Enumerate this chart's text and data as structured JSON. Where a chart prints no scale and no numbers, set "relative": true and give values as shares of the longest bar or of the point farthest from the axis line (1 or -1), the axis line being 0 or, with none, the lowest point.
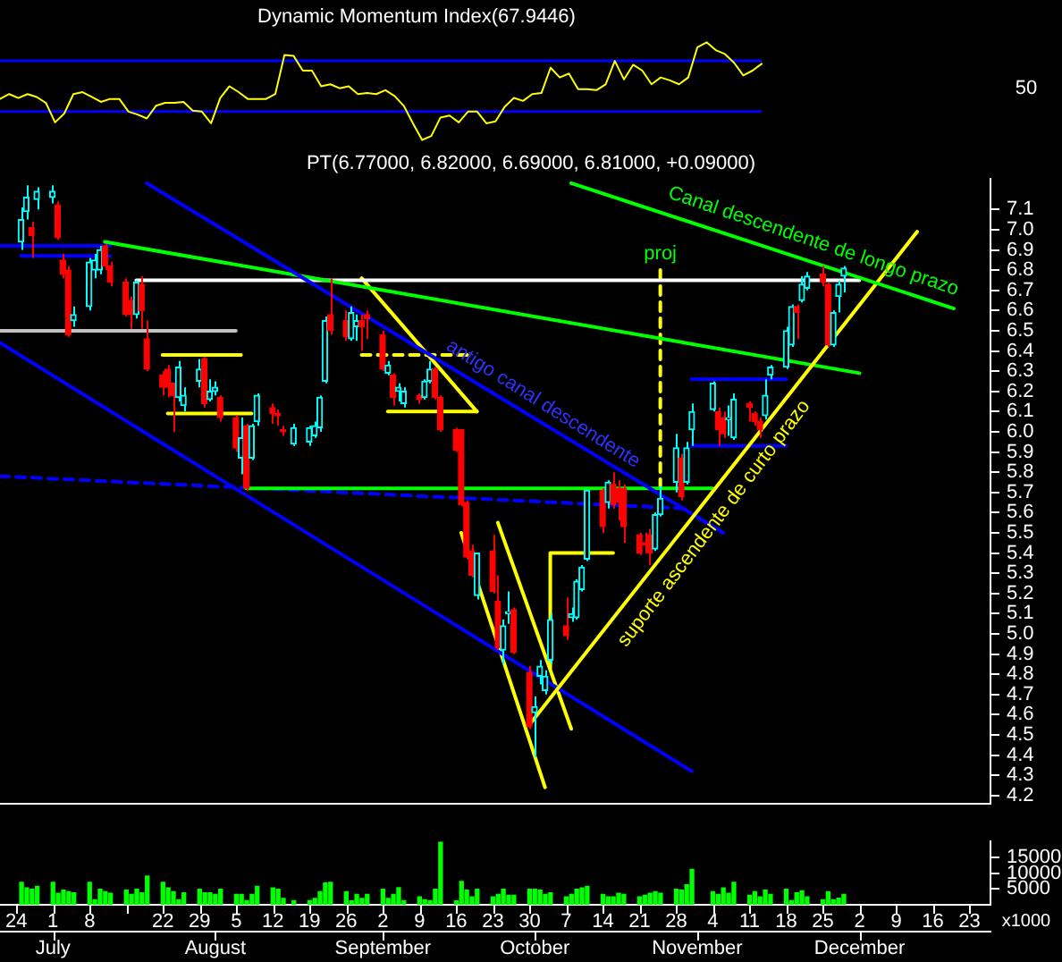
{
  "chart_data": [
    {
      "type": "line",
      "title": "Dynamic Momentum Index(67.9446)",
      "color": "#ffff00",
      "tick_labels": false,
      "relative": true,
      "categories": [
        null,
        null,
        null,
        null,
        null,
        null,
        null,
        null,
        null,
        null,
        null,
        null,
        null,
        null,
        null,
        null,
        null,
        null,
        null,
        null,
        null,
        null,
        null,
        null,
        null,
        null,
        null,
        null,
        null,
        null,
        null,
        null,
        null,
        null,
        null,
        null,
        null,
        null,
        null,
        null,
        null,
        null,
        null,
        null,
        null,
        null,
        null,
        null,
        null,
        null,
        null,
        null,
        null,
        null,
        null,
        null,
        null,
        null,
        null,
        null,
        null,
        null,
        null,
        null,
        null,
        null,
        null,
        null,
        null,
        null,
        null,
        null,
        null,
        null,
        null,
        null,
        null,
        null,
        null,
        null,
        null,
        null,
        null,
        null
      ],
      "ref_lines": [
        {
          "axis": "y",
          "value": 0.29,
          "color": "#0000ff"
        },
        {
          "axis": "y",
          "value": 0.81,
          "color": "#0000ff"
        }
      ],
      "annotations": [
        "50"
      ],
      "values": [
        0.42,
        0.47,
        0.43,
        0.47,
        0.44,
        0.38,
        0.18,
        0.27,
        0.47,
        0.49,
        0.44,
        0.39,
        0.42,
        0.42,
        0.29,
        0.26,
        0.22,
        0.35,
        0.38,
        0.38,
        0.39,
        0.3,
        0.29,
        0.17,
        0.43,
        0.55,
        0.49,
        0.42,
        0.42,
        0.42,
        0.47,
        0.87,
        0.86,
        0.71,
        0.71,
        0.55,
        0.57,
        0.53,
        0.55,
        0.47,
        0.48,
        0.47,
        0.51,
        0.45,
        0.35,
        0.17,
        0,
        0.04,
        0.23,
        0.25,
        0.18,
        0.29,
        0.29,
        0.17,
        0.19,
        0.34,
        0.43,
        0.4,
        0.47,
        0.48,
        0.74,
        0.64,
        0.68,
        0.52,
        0.52,
        0.51,
        0.57,
        0.81,
        0.62,
        0.77,
        0.71,
        0.57,
        0.64,
        0.61,
        0.57,
        0.64,
        0.95,
        1,
        0.92,
        0.88,
        0.79,
        0.66,
        0.71,
        0.78
      ]
    },
    {
      "type": "candlestick",
      "title": "PT(6.77000, 6.82000, 6.69000, 6.81000, +0.09000)",
      "tick_labels": "y",
      "xlim": [
        "--06-21",
        "--12-27"
      ],
      "ylim": [
        4.16,
        7.25
      ],
      "yticks": [
        4.2,
        4.3,
        4.4,
        4.5,
        4.6,
        4.7,
        4.8,
        4.9,
        {
          "value": 5,
          "label": "5.0"
        },
        5.1,
        5.2,
        5.3,
        5.4,
        5.5,
        5.6,
        5.7,
        5.8,
        5.9,
        {
          "value": 6,
          "label": "6.0"
        },
        6.1,
        6.2,
        6.3,
        6.4,
        6.5,
        6.6,
        6.7,
        6.8,
        6.9,
        {
          "value": 7,
          "label": "7.0"
        },
        7.1
      ],
      "x": [
        "--06-25",
        "--06-26",
        "--06-27",
        "--06-28",
        "--07-01",
        "--07-02",
        "--07-03",
        "--07-04",
        "--07-05",
        "--07-08",
        "--07-09",
        "--07-10",
        "--07-11",
        "--07-12",
        "--07-15",
        "--07-16",
        "--07-17",
        "--07-18",
        "--07-19",
        "--07-22",
        "--07-23",
        "--07-24",
        "--07-25",
        "--07-26",
        "--07-29",
        "--07-30",
        "--07-31",
        "--08-01",
        "--08-02",
        "--08-05",
        "--08-06",
        "--08-07",
        "--08-08",
        "--08-09",
        "--08-12",
        "--08-13",
        "--08-14",
        "--08-16",
        "--08-19",
        "--08-20",
        "--08-21",
        "--08-22",
        "--08-23",
        "--08-26",
        "--08-27",
        "--08-28",
        "--08-29",
        "--08-30",
        "--09-02",
        "--09-03",
        "--09-04",
        "--09-05",
        "--09-06",
        "--09-09",
        "--09-10",
        "--09-11",
        "--09-12",
        "--09-13",
        "--09-16",
        "--09-17",
        "--09-18",
        "--09-19",
        "--09-20",
        "--09-23",
        "--09-24",
        "--09-25",
        "--09-26",
        "--09-27",
        "--09-30",
        "--10-01",
        "--10-02",
        "--10-03",
        "--10-04",
        "--10-07",
        "--10-08",
        "--10-09",
        "--10-10",
        "--10-11",
        "--10-14",
        "--10-15",
        "--10-16",
        "--10-17",
        "--10-18",
        "--10-21",
        "--10-22",
        "--10-23",
        "--10-24",
        "--10-25",
        "--10-28",
        "--10-29",
        "--10-30",
        "--10-31",
        "--11-04",
        "--11-05",
        "--11-06",
        "--11-07",
        "--11-08",
        "--11-11",
        "--11-12",
        "--11-13",
        "--11-14",
        "--11-15",
        "--11-18",
        "--11-19",
        "--11-20",
        "--11-21",
        "--11-22",
        "--11-25",
        "--11-26",
        "--11-27",
        "--11-28",
        "--11-29"
      ],
      "ohlc": [
        [
          6.94,
          7.11,
          6.9,
          7.05
        ],
        [
          7.09,
          7.22,
          7.05,
          7.16
        ],
        [
          7.01,
          7.04,
          6.86,
          6.97
        ],
        [
          7.15,
          7.21,
          7.1,
          7.19
        ],
        [
          7.16,
          7.22,
          7.13,
          7.19
        ],
        [
          7.12,
          7.14,
          6.95,
          6.96
        ],
        [
          6.85,
          6.88,
          6.76,
          6.78
        ],
        [
          6.8,
          6.82,
          6.47,
          6.48
        ],
        [
          6.55,
          6.62,
          6.52,
          6.58
        ],
        [
          6.62,
          6.86,
          6.6,
          6.84
        ],
        [
          6.8,
          6.88,
          6.76,
          6.85
        ],
        [
          6.8,
          6.92,
          6.78,
          6.9
        ],
        [
          6.92,
          6.93,
          6.8,
          6.82
        ],
        [
          6.82,
          6.84,
          6.72,
          6.74
        ],
        [
          6.74,
          6.76,
          6.57,
          6.58
        ],
        [
          6.65,
          6.67,
          6.51,
          6.58
        ],
        [
          6.58,
          6.75,
          6.56,
          6.74
        ],
        [
          6.73,
          6.77,
          6.51,
          6.6
        ],
        [
          6.46,
          6.55,
          6.3,
          6.31
        ],
        [
          6.28,
          6.3,
          6.18,
          6.22
        ],
        [
          6.31,
          6.33,
          6.17,
          6.22
        ],
        [
          6.24,
          6.24,
          6.0,
          6.18
        ],
        [
          6.17,
          6.35,
          6.15,
          6.32
        ],
        [
          6.13,
          6.22,
          6.1,
          6.18
        ],
        [
          6.25,
          6.36,
          6.22,
          6.31
        ],
        [
          6.36,
          6.37,
          6.12,
          6.14
        ],
        [
          6.16,
          6.26,
          6.15,
          6.2
        ],
        [
          6.2,
          6.25,
          6.18,
          6.22
        ],
        [
          6.17,
          6.18,
          6.05,
          6.07
        ],
        [
          6.07,
          6.08,
          5.9,
          5.92
        ],
        [
          5.87,
          6.07,
          5.79,
          5.97
        ],
        [
          6.03,
          6.04,
          5.71,
          5.72
        ],
        [
          5.87,
          6.04,
          5.86,
          6.03
        ],
        [
          6.05,
          6.19,
          6.03,
          6.18
        ],
        [
          6.12,
          6.14,
          6.04,
          6.09
        ],
        [
          6.09,
          6.11,
          6.03,
          6.08
        ],
        [
          6.01,
          6.03,
          5.98,
          6.0
        ],
        [
          5.94,
          6.04,
          5.93,
          6.02
        ],
        [
          5.95,
          6.03,
          5.93,
          6.02
        ],
        [
          5.98,
          6.05,
          5.97,
          6.03
        ],
        [
          6.02,
          6.18,
          6.0,
          6.17
        ],
        [
          6.25,
          6.57,
          6.24,
          6.55
        ],
        [
          6.58,
          6.76,
          6.48,
          6.5
        ],
        [
          6.55,
          6.6,
          6.45,
          6.47
        ],
        [
          6.46,
          6.62,
          6.45,
          6.59
        ],
        [
          6.52,
          6.58,
          6.45,
          6.55
        ],
        [
          6.55,
          6.58,
          6.4,
          6.52
        ],
        [
          6.58,
          6.6,
          6.46,
          6.56
        ],
        [
          6.48,
          6.5,
          6.3,
          6.31
        ],
        [
          6.29,
          6.35,
          6.28,
          6.33
        ],
        [
          6.28,
          6.29,
          6.13,
          6.17
        ],
        [
          6.2,
          6.24,
          6.15,
          6.22
        ],
        [
          6.14,
          6.22,
          6.12,
          6.2
        ],
        [
          6.18,
          6.19,
          6.14,
          6.16
        ],
        [
          6.17,
          6.26,
          6.16,
          6.25
        ],
        [
          6.25,
          6.35,
          6.24,
          6.31
        ],
        [
          6.31,
          6.32,
          6.16,
          6.17
        ],
        [
          6.17,
          6.18,
          6.0,
          6.01
        ],
        [
          6.01,
          6.02,
          5.9,
          5.91
        ],
        [
          6.01,
          6.01,
          5.63,
          5.64
        ],
        [
          5.65,
          5.66,
          5.37,
          5.38
        ],
        [
          5.41,
          5.44,
          5.28,
          5.29
        ],
        [
          5.19,
          5.4,
          5.17,
          5.4
        ],
        [
          5.41,
          5.49,
          5.2,
          5.21
        ],
        [
          5.16,
          5.29,
          4.92,
          4.93
        ],
        [
          4.92,
          5.07,
          4.85,
          5.04
        ],
        [
          5.1,
          5.21,
          5.05,
          5.11
        ],
        [
          5.12,
          5.13,
          4.9,
          4.91
        ],
        [
          4.81,
          4.84,
          4.53,
          4.54
        ],
        [
          4.61,
          4.69,
          4.39,
          4.64
        ],
        [
          4.79,
          4.87,
          4.75,
          4.84
        ],
        [
          4.72,
          4.82,
          4.7,
          4.79
        ],
        [
          4.87,
          5.1,
          4.85,
          5.07
        ],
        [
          5.04,
          5.18,
          4.97,
          4.99
        ],
        [
          5.08,
          5.13,
          5.06,
          5.1
        ],
        [
          5.08,
          5.27,
          5.07,
          5.26
        ],
        [
          5.22,
          5.34,
          5.21,
          5.33
        ],
        [
          5.37,
          5.71,
          5.36,
          5.71
        ],
        [
          5.71,
          5.72,
          5.5,
          5.53
        ],
        [
          5.65,
          5.76,
          5.62,
          5.75
        ],
        [
          5.74,
          5.8,
          5.62,
          5.64
        ],
        [
          5.72,
          5.76,
          5.56,
          5.65
        ],
        [
          5.72,
          5.74,
          5.45,
          5.53
        ],
        [
          5.49,
          5.5,
          5.39,
          5.4
        ],
        [
          5.45,
          5.5,
          5.4,
          5.44
        ],
        [
          5.49,
          5.52,
          5.34,
          5.4
        ],
        [
          5.42,
          5.6,
          5.41,
          5.59
        ],
        [
          5.59,
          5.73,
          5.58,
          5.67
        ],
        [
          5.75,
          5.99,
          5.7,
          5.92
        ],
        [
          5.87,
          5.89,
          5.66,
          5.68
        ],
        [
          5.75,
          5.95,
          5.74,
          5.92
        ],
        [
          6.01,
          6.14,
          5.93,
          6.1
        ],
        [
          6.11,
          6.25,
          6.1,
          6.24
        ],
        [
          6.1,
          6.12,
          5.93,
          6.01
        ],
        [
          6.07,
          6.1,
          5.97,
          5.99
        ],
        [
          6.06,
          6.13,
          5.98,
          6.07
        ],
        [
          5.97,
          6.19,
          5.96,
          6.16
        ],
        [
          6.14,
          6.15,
          6.05,
          6.12
        ],
        [
          6.09,
          6.1,
          6.03,
          6.05
        ],
        [
          6.05,
          6.07,
          5.97,
          6.01
        ],
        [
          6.08,
          6.26,
          6.06,
          6.18
        ],
        [
          6.28,
          6.33,
          6.26,
          6.32
        ],
        [
          6.32,
          6.52,
          6.31,
          6.5
        ],
        [
          6.43,
          6.63,
          6.42,
          6.62
        ],
        [
          6.62,
          6.63,
          6.46,
          6.59
        ],
        [
          6.65,
          6.77,
          6.64,
          6.73
        ],
        [
          6.71,
          6.79,
          6.7,
          6.77
        ],
        [
          6.78,
          6.82,
          6.72,
          6.74
        ],
        [
          6.73,
          6.74,
          6.42,
          6.43
        ],
        [
          6.43,
          6.6,
          6.42,
          6.59
        ],
        [
          6.67,
          6.75,
          6.59,
          6.73
        ],
        [
          6.77,
          6.82,
          6.69,
          6.81
        ]
      ],
      "colors": [
        "#00ffff",
        "#00ffff",
        "#ff0000",
        "#00ffff",
        "#00ffff",
        "#ff0000",
        "#ff0000",
        "#ff0000",
        "#00ffff",
        "#00ffff",
        "#00ffff",
        "#00ffff",
        "#ff0000",
        "#ff0000",
        "#ff0000",
        "#ff0000",
        "#00ffff",
        "#ff0000",
        "#ff0000",
        "#ff0000",
        "#ff0000",
        "#ff0000",
        "#00ffff",
        "#00ffff",
        "#00ffff",
        "#ff0000",
        "#00ffff",
        "#00ffff",
        "#ff0000",
        "#ff0000",
        "#00ffff",
        "#ff0000",
        "#00ffff",
        "#00ffff",
        "#ff0000",
        "#ff0000",
        "#ff0000",
        "#00ffff",
        "#00ffff",
        "#00ffff",
        "#00ffff",
        "#00ffff",
        "#ff0000",
        "#ff0000",
        "#00ffff",
        "#00ffff",
        "#ff0000",
        "#ff0000",
        "#ff0000",
        "#00ffff",
        "#ff0000",
        "#00ffff",
        "#00ffff",
        "#ff0000",
        "#00ffff",
        "#00ffff",
        "#ff0000",
        "#ff0000",
        "#ff0000",
        "#ff0000",
        "#ff0000",
        "#ff0000",
        "#00ffff",
        "#ff0000",
        "#ff0000",
        "#00ffff",
        "#00ffff",
        "#ff0000",
        "#ff0000",
        "#00ffff",
        "#00ffff",
        "#00ffff",
        "#00ffff",
        "#ff0000",
        "#00ffff",
        "#00ffff",
        "#00ffff",
        "#00ffff",
        "#ff0000",
        "#00ffff",
        "#ff0000",
        "#ff0000",
        "#ff0000",
        "#ff0000",
        "#ff0000",
        "#ff0000",
        "#00ffff",
        "#00ffff",
        "#00ffff",
        "#ff0000",
        "#00ffff",
        "#00ffff",
        "#00ffff",
        "#ff0000",
        "#ff0000",
        "#00ffff",
        "#00ffff",
        "#ff0000",
        "#ff0000",
        "#ff0000",
        "#00ffff",
        "#00ffff",
        "#00ffff",
        "#00ffff",
        "#ff0000",
        "#00ffff",
        "#00ffff",
        "#ff0000",
        "#ff0000",
        "#00ffff",
        "#00ffff",
        "#00ffff"
      ],
      "series": [
        {
          "type": "line",
          "color": "#00ff00",
          "x": [
            "--10-08",
            "--12-20"
          ],
          "values": [
            7.23,
            6.61
          ]
        },
        {
          "type": "line",
          "color": "#ffff00",
          "x": [
            "--09-30",
            "--12-13"
          ],
          "values": [
            4.55,
            6.99
          ]
        },
        {
          "type": "line",
          "color": "#0000ff",
          "x": [
            "--07-19",
            "--11-06"
          ],
          "values": [
            7.23,
            5.5
          ]
        },
        {
          "type": "line",
          "color": "#0000ff",
          "x": [
            "--06-21",
            "--10-31"
          ],
          "values": [
            6.44,
            4.32
          ]
        },
        {
          "type": "line",
          "color": "#00ff00",
          "x": [
            "--07-11",
            "--12-02"
          ],
          "values": [
            6.94,
            6.29
          ]
        },
        {
          "type": "line",
          "color": "#ffffff",
          "x": [
            "--07-17",
            "--12-02"
          ],
          "values": [
            6.75,
            6.75
          ]
        },
        {
          "type": "line",
          "color": "#00ff00",
          "x": [
            "--08-07",
            "--11-04"
          ],
          "values": [
            5.72,
            5.72
          ]
        },
        {
          "type": "line",
          "color": "#ffff00",
          "line_style": "dashed",
          "x": [
            "--10-25",
            "--10-25"
          ],
          "values": [
            6.8,
            5.72
          ]
        },
        {
          "type": "line",
          "color": "#0000ff",
          "line_style": "dashed",
          "x": [
            "--06-21",
            "--10-30"
          ],
          "values": [
            5.78,
            5.62
          ]
        },
        {
          "type": "line",
          "color": "#ffff00",
          "x": [
            "--09-17",
            "--10-03"
          ],
          "values": [
            5.5,
            4.24
          ]
        },
        {
          "type": "line",
          "color": "#ffff00",
          "x": [
            "--09-24",
            "--10-08"
          ],
          "values": [
            5.55,
            4.53
          ]
        },
        {
          "type": "line",
          "color": "#c0c0c0",
          "x": [
            "--06-21",
            "--08-05"
          ],
          "values": [
            6.5,
            6.5
          ]
        },
        {
          "type": "line",
          "color": "#ffff00",
          "x": [
            "--07-22",
            "--08-06"
          ],
          "values": [
            6.38,
            6.38
          ]
        },
        {
          "type": "line",
          "color": "#ffff00",
          "x": [
            "--07-23",
            "--08-08"
          ],
          "values": [
            6.09,
            6.09
          ]
        },
        {
          "type": "line",
          "color": "#ffff00",
          "x": [
            "--09-03",
            "--09-20"
          ],
          "values": [
            6.1,
            6.1
          ]
        },
        {
          "type": "line",
          "color": "#ffff00",
          "line_style": "dashed",
          "x": [
            "--08-29",
            "--09-19"
          ],
          "values": [
            6.38,
            6.38
          ]
        },
        {
          "type": "line",
          "color": "#ffff00",
          "x": [
            "--08-29",
            "--09-20"
          ],
          "values": [
            6.76,
            6.1
          ]
        },
        {
          "type": "line",
          "color": "#0000ff",
          "x": [
            "--10-31",
            "--11-18"
          ],
          "values": [
            6.26,
            6.26
          ]
        },
        {
          "type": "line",
          "color": "#0000ff",
          "x": [
            "--10-31",
            "--11-18"
          ],
          "values": [
            5.93,
            5.93
          ]
        },
        {
          "type": "line",
          "color": "#ffff00",
          "x": [
            "--10-04",
            "--10-04",
            "--10-16"
          ],
          "values": [
            4.83,
            5.4,
            5.4
          ]
        },
        {
          "type": "line",
          "color": "#0000ff",
          "x": [
            "--06-21",
            "--07-12"
          ],
          "values": [
            6.92,
            6.92
          ]
        },
        {
          "type": "line",
          "color": "#0000ff",
          "x": [
            "--06-25",
            "--07-12"
          ],
          "values": [
            6.87,
            6.87
          ]
        }
      ],
      "annotations": [
        {
          "text": "proj",
          "x": "--10-25",
          "y": 6.8
        },
        {
          "text": "Canal descendente de longo prazo",
          "x": "--11-22",
          "y": 6.85
        },
        {
          "text": "antigo canal descendente",
          "x": "--10-01",
          "y": 6.07
        },
        {
          "text": "suporte ascendente de curto prazo",
          "x": "--11-01",
          "y": 5.61
        }
      ]
    },
    {
      "type": "bar",
      "color": "#00ff00",
      "ylabel": "x1000",
      "xlim": [
        "--06-21",
        "--12-27"
      ],
      "ylim": [
        0,
        20000
      ],
      "yticks": [
        5000,
        10000,
        15000
      ],
      "xticks": [
        {
          "value": "--06-24",
          "label": "24"
        },
        {
          "value": "--07-01",
          "label": "1"
        },
        {
          "value": "--07-08",
          "label": "8"
        },
        {
          "value": "--07-15",
          "label": null
        },
        {
          "value": "--07-22",
          "label": "22"
        },
        {
          "value": "--07-29",
          "label": "29"
        },
        {
          "value": "--08-05",
          "label": "5"
        },
        {
          "value": "--08-12",
          "label": "12"
        },
        {
          "value": "--08-19",
          "label": "19"
        },
        {
          "value": "--08-26",
          "label": "26"
        },
        {
          "value": "--09-02",
          "label": "2"
        },
        {
          "value": "--09-09",
          "label": "9"
        },
        {
          "value": "--09-16",
          "label": "16"
        },
        {
          "value": "--09-23",
          "label": "23"
        },
        {
          "value": "--09-30",
          "label": "30"
        },
        {
          "value": "--10-07",
          "label": "7"
        },
        {
          "value": "--10-14",
          "label": "14"
        },
        {
          "value": "--10-21",
          "label": "21"
        },
        {
          "value": "--10-28",
          "label": "28"
        },
        {
          "value": "--11-04",
          "label": "4"
        },
        {
          "value": "--11-11",
          "label": "11"
        },
        {
          "value": "--11-18",
          "label": "18"
        },
        {
          "value": "--11-25",
          "label": "25"
        },
        {
          "value": "--12-02",
          "label": "2"
        },
        {
          "value": "--12-09",
          "label": "9"
        },
        {
          "value": "--12-16",
          "label": "16"
        },
        {
          "value": "--12-23",
          "label": "23"
        }
      ],
      "x2lim": [
        "--06-21",
        "--12-27"
      ],
      "x2ticks": [
        {
          "value": "--07-01",
          "label": "July"
        },
        {
          "value": "--08-01",
          "label": "August"
        },
        {
          "value": "--09-02",
          "label": "September"
        },
        {
          "value": "--10-01",
          "label": "October"
        },
        {
          "value": "--11-01",
          "label": "November"
        },
        {
          "value": "--12-02",
          "label": "December"
        }
      ],
      "x": [
        "--06-25",
        "--06-26",
        "--06-27",
        "--06-28",
        "--07-01",
        "--07-02",
        "--07-03",
        "--07-04",
        "--07-05",
        "--07-08",
        "--07-09",
        "--07-10",
        "--07-11",
        "--07-12",
        "--07-15",
        "--07-16",
        "--07-17",
        "--07-18",
        "--07-19",
        "--07-22",
        "--07-23",
        "--07-24",
        "--07-25",
        "--07-26",
        "--07-29",
        "--07-30",
        "--07-31",
        "--08-01",
        "--08-02",
        "--08-05",
        "--08-06",
        "--08-07",
        "--08-08",
        "--08-09",
        "--08-12",
        "--08-13",
        "--08-14",
        "--08-16",
        "--08-19",
        "--08-20",
        "--08-21",
        "--08-22",
        "--08-23",
        "--08-26",
        "--08-27",
        "--08-28",
        "--08-29",
        "--08-30",
        "--09-02",
        "--09-03",
        "--09-04",
        "--09-05",
        "--09-06",
        "--09-09",
        "--09-10",
        "--09-11",
        "--09-12",
        "--09-13",
        "--09-16",
        "--09-17",
        "--09-18",
        "--09-19",
        "--09-20",
        "--09-23",
        "--09-24",
        "--09-25",
        "--09-26",
        "--09-27",
        "--09-30",
        "--10-01",
        "--10-02",
        "--10-03",
        "--10-04",
        "--10-07",
        "--10-08",
        "--10-09",
        "--10-10",
        "--10-11",
        "--10-14",
        "--10-15",
        "--10-16",
        "--10-17",
        "--10-18",
        "--10-21",
        "--10-22",
        "--10-23",
        "--10-24",
        "--10-25",
        "--10-28",
        "--10-29",
        "--10-30",
        "--10-31",
        "--11-04",
        "--11-05",
        "--11-06",
        "--11-07",
        "--11-08",
        "--11-11",
        "--11-12",
        "--11-13",
        "--11-14",
        "--11-15",
        "--11-18",
        "--11-19",
        "--11-20",
        "--11-21",
        "--11-22",
        "--11-25",
        "--11-26",
        "--11-27",
        "--11-28",
        "--11-29"
      ],
      "values": [
        7100,
        5300,
        4900,
        5800,
        7100,
        3600,
        4600,
        4100,
        3800,
        7100,
        1600,
        4900,
        4100,
        3600,
        4600,
        3300,
        4900,
        3800,
        9100,
        7100,
        5300,
        4100,
        1600,
        3800,
        4900,
        3800,
        3800,
        3300,
        4900,
        3300,
        3300,
        1300,
        3300,
        5800,
        5300,
        4900,
        2000,
        1300,
        1300,
        2000,
        4100,
        6900,
        7100,
        4100,
        1200,
        3300,
        2000,
        3300,
        4900,
        2000,
        3300,
        5400,
        1300,
        2500,
        1600,
        1300,
        4900,
        19800,
        1200,
        7400,
        4600,
        2500,
        4900,
        2500,
        3300,
        4900,
        3000,
        3000,
        4900,
        4900,
        4600,
        3300,
        3800,
        2500,
        3300,
        4900,
        5300,
        5800,
        3300,
        2500,
        2500,
        3600,
        3300,
        2500,
        3000,
        3600,
        4100,
        3600,
        4900,
        4600,
        6300,
        11200,
        4100,
        3300,
        5300,
        3600,
        7100,
        3000,
        4100,
        2500,
        4600,
        3300,
        4900,
        1300,
        3800,
        4400,
        2500,
        1600,
        4100,
        1600,
        2100,
        3300
      ]
    }
  ]
}
